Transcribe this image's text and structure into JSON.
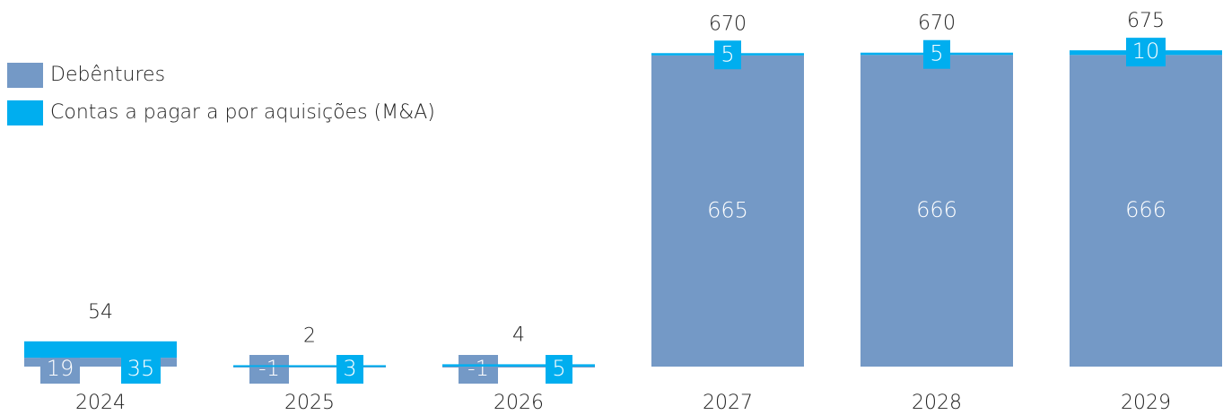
{
  "chart_data": {
    "type": "bar",
    "stacked": true,
    "categories": [
      "2024",
      "2025",
      "2026",
      "2027",
      "2028",
      "2029"
    ],
    "series": [
      {
        "name": "Debêntures",
        "color": "#7499c6",
        "values": [
          19,
          -1,
          -1,
          665,
          666,
          666
        ]
      },
      {
        "name": "Contas a pagar a por aquisições (M&A)",
        "color": "#00aeef",
        "values": [
          35,
          3,
          5,
          5,
          5,
          10
        ]
      }
    ],
    "totals": [
      54,
      2,
      4,
      670,
      670,
      675
    ],
    "legend": "top-left"
  }
}
